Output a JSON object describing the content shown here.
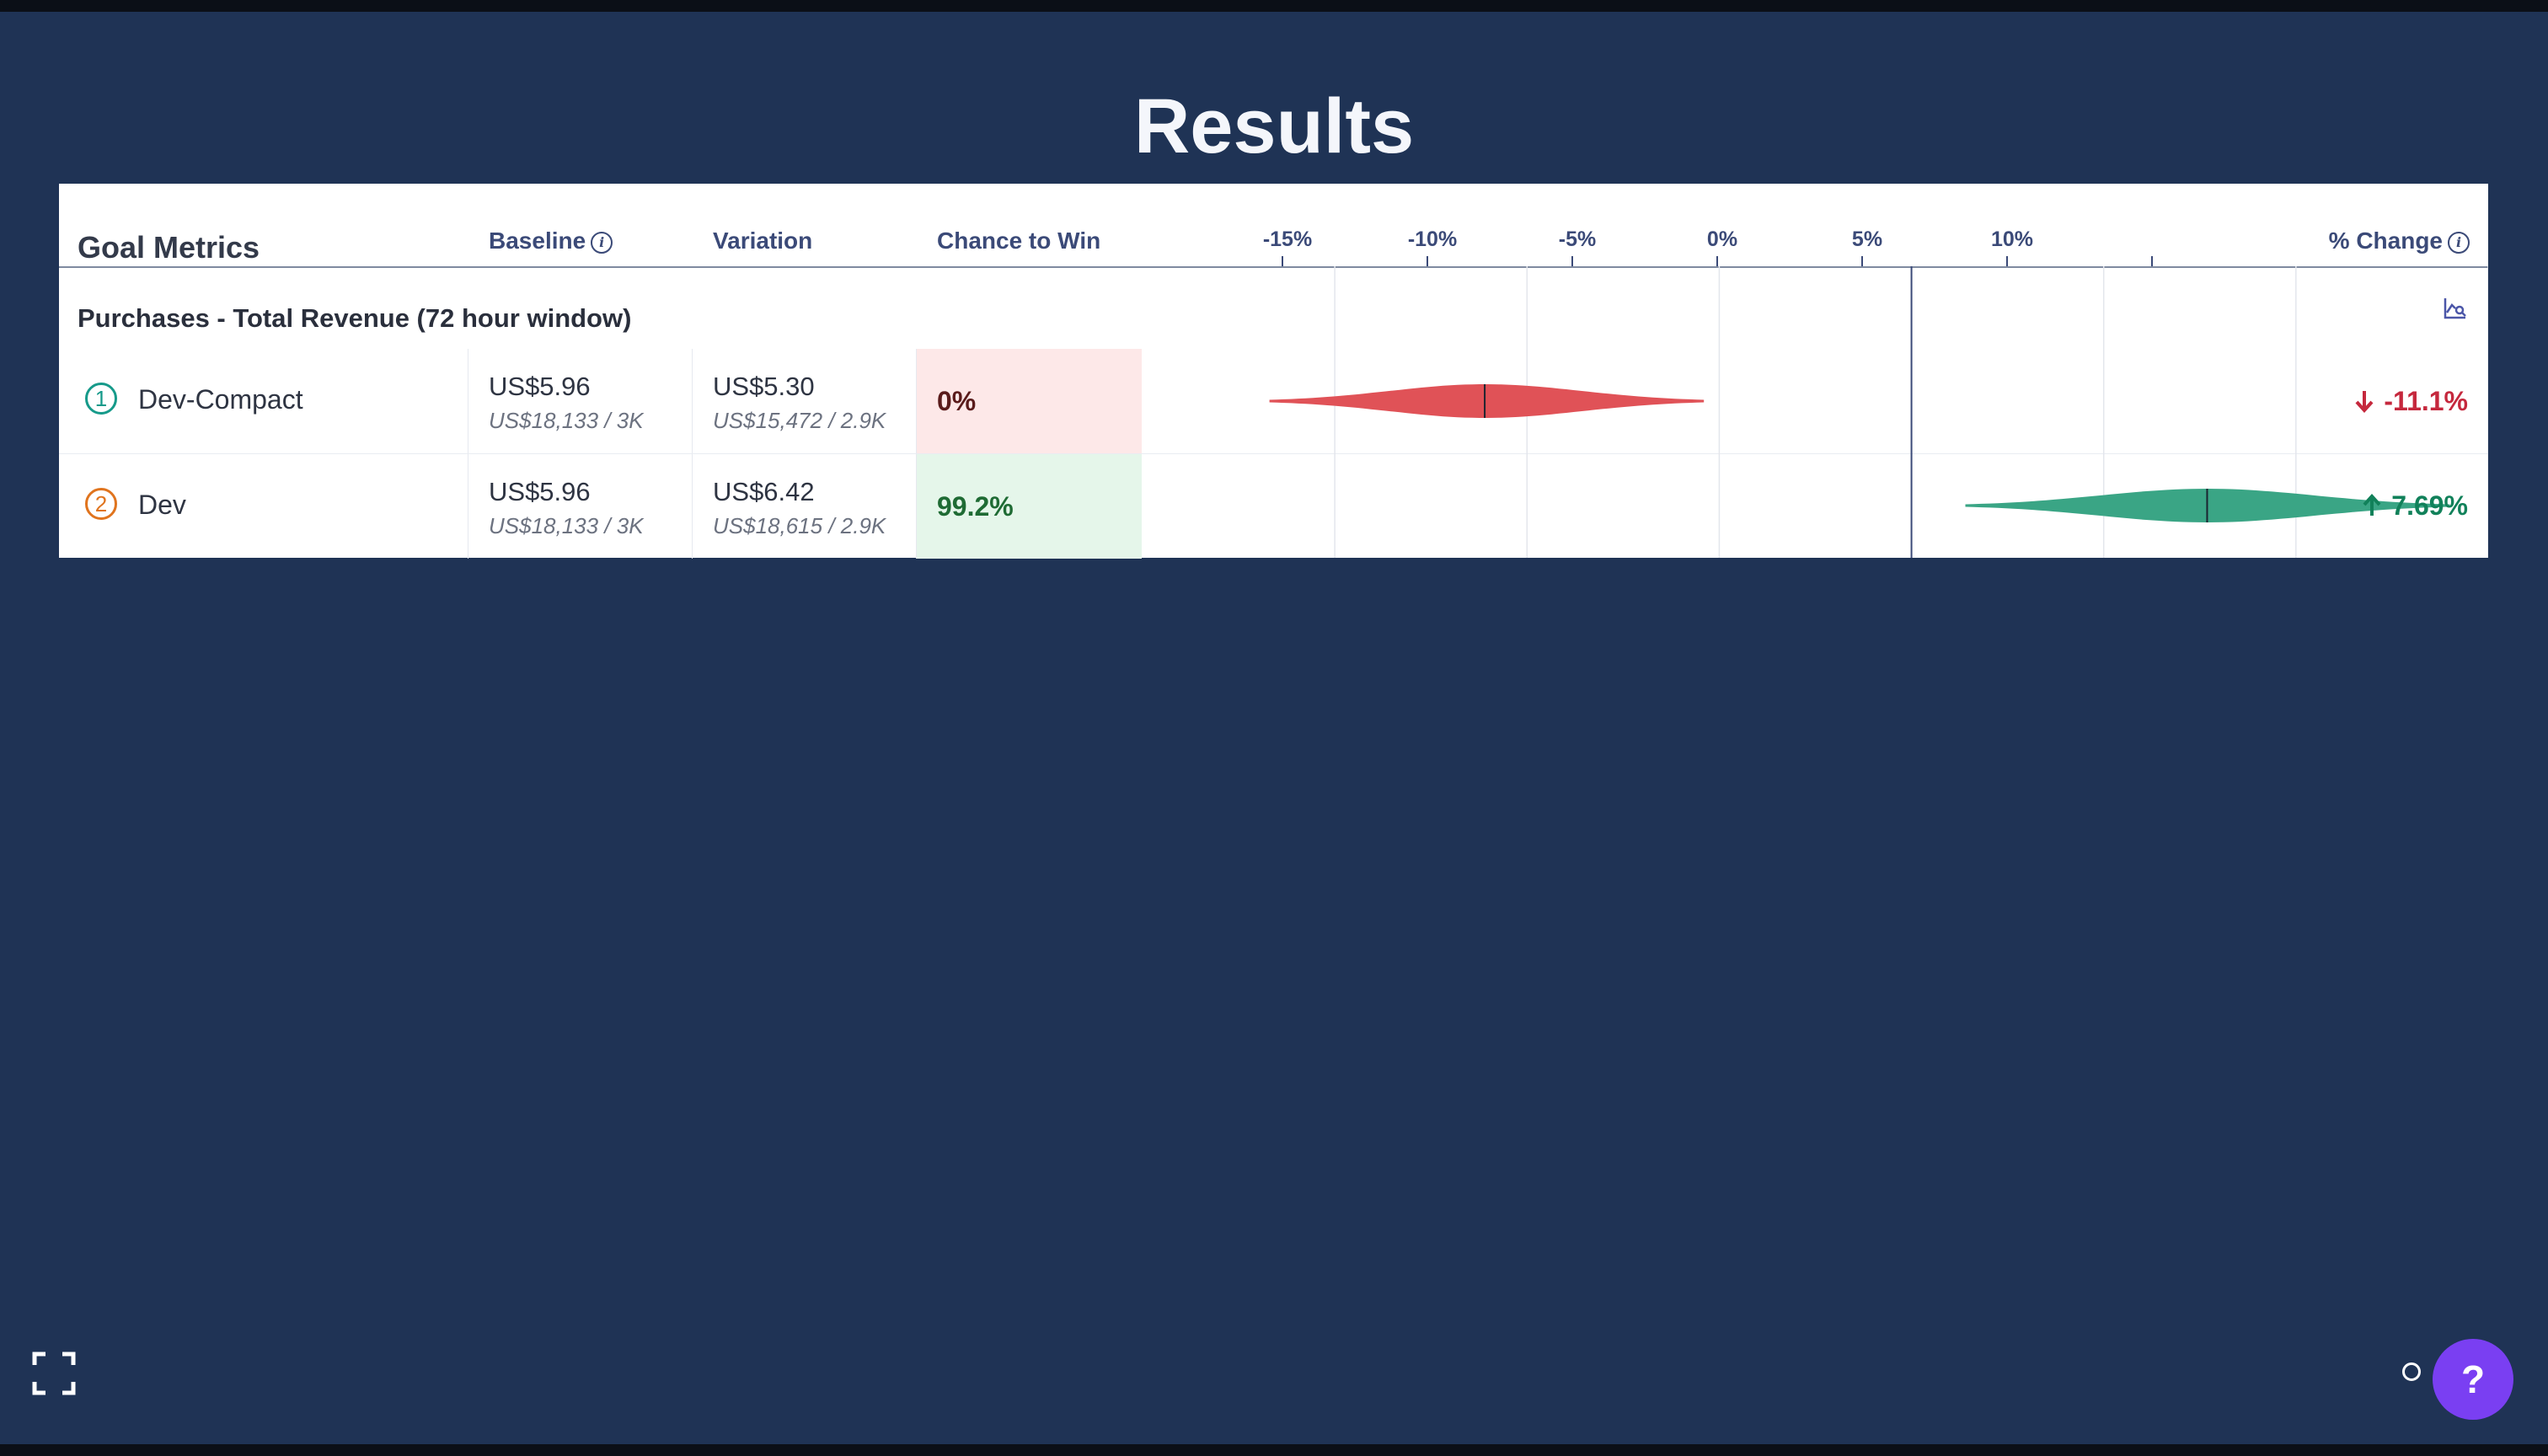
{
  "page": {
    "title": "Results"
  },
  "table": {
    "headers": {
      "goal_metrics": "Goal Metrics",
      "baseline": "Baseline",
      "variation": "Variation",
      "chance_to_win": "Chance to Win",
      "pct_change": "% Change",
      "info_glyph": "i"
    },
    "axis_ticks": [
      "-15%",
      "-10%",
      "-5%",
      "0%",
      "5%",
      "10%"
    ],
    "metric": {
      "title": "Purchases - Total Revenue (72 hour window)"
    },
    "rows": [
      {
        "badge": "1",
        "name": "Dev-Compact",
        "baseline_value": "US$5.96",
        "baseline_sub": "US$18,133 / 3K",
        "variation_value": "US$5.30",
        "variation_sub": "US$15,472 / 2.9K",
        "chance_to_win": "0%",
        "pct_change": "-11.1%"
      },
      {
        "badge": "2",
        "name": "Dev",
        "baseline_value": "US$5.96",
        "baseline_sub": "US$18,133 / 3K",
        "variation_value": "US$6.42",
        "variation_sub": "US$18,615 / 2.9K",
        "chance_to_win": "99.2%",
        "pct_change": "7.69%"
      }
    ]
  },
  "chart_data": {
    "type": "violin",
    "x_ticks": [
      "-15%",
      "-10%",
      "-5%",
      "0%",
      "5%",
      "10%"
    ],
    "x_range": [
      -20,
      15
    ],
    "series": [
      {
        "name": "Dev-Compact",
        "low": -16.7,
        "median": -11.1,
        "high": -5.4,
        "color": "#e05257"
      },
      {
        "name": "Dev",
        "low": 1.4,
        "median": 7.69,
        "high": 14.0,
        "color": "#3aa585"
      }
    ]
  },
  "colors": {
    "background": "#1f3355",
    "help_button": "#7a3ff2",
    "negative": "#c5283d",
    "positive": "#11815a"
  },
  "help": {
    "label": "?"
  }
}
